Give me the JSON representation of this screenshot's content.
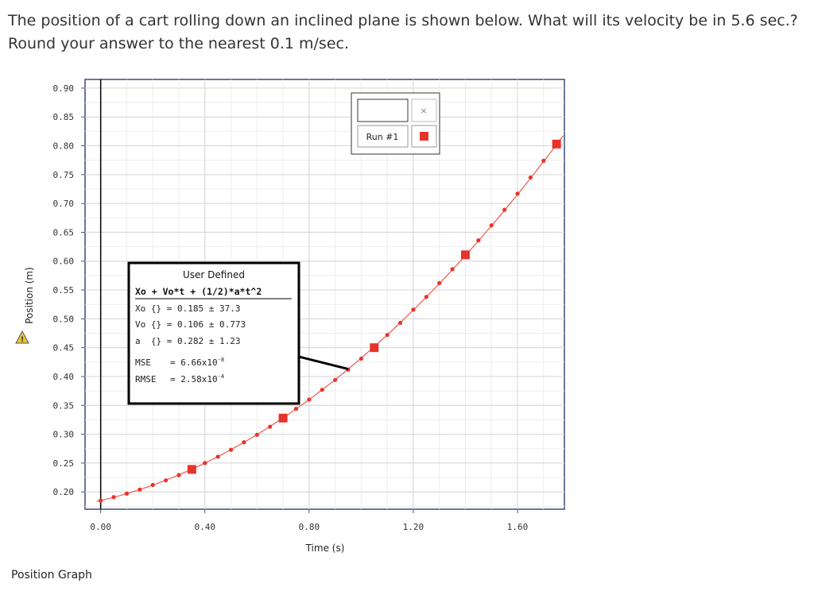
{
  "question": "The position of a cart rolling down an inclined plane is shown below. What will its velocity be in 5.6 sec.? Round your answer to the nearest 0.1 m/sec.",
  "caption": "Position Graph",
  "legend": {
    "run_label": "Run #1",
    "close": "×"
  },
  "fit_box": {
    "title": "User Defined",
    "equation": "Xo + Vo*t + (1/2)*a*t^2",
    "rows": [
      "Xo {} = 0.185 ± 37.3",
      "Vo {} = 0.106 ± 0.773",
      "a  {} = 0.282 ± 1.23"
    ],
    "mse_label": "MSE",
    "mse_value": "= 6.66x10",
    "mse_exp": "-8",
    "rmse_label": "RMSE",
    "rmse_value": "= 2.58x10",
    "rmse_exp": "-4"
  },
  "chart_data": {
    "type": "scatter",
    "xlabel": "Time (s)",
    "ylabel": "Position (m)",
    "xlim": [
      -0.06,
      1.78
    ],
    "ylim": [
      0.17,
      0.915
    ],
    "x_ticks": [
      "0.00",
      "0.40",
      "0.80",
      "1.20",
      "1.60"
    ],
    "x_tick_values": [
      0,
      0.4,
      0.8,
      1.2,
      1.6
    ],
    "y_ticks": [
      "0.20",
      "0.25",
      "0.30",
      "0.35",
      "0.40",
      "0.45",
      "0.50",
      "0.55",
      "0.60",
      "0.65",
      "0.70",
      "0.75",
      "0.80",
      "0.85",
      "0.90"
    ],
    "y_tick_values": [
      0.2,
      0.25,
      0.3,
      0.35,
      0.4,
      0.45,
      0.5,
      0.55,
      0.6,
      0.65,
      0.7,
      0.75,
      0.8,
      0.85,
      0.9
    ],
    "grid": true,
    "fit": {
      "Xo": 0.185,
      "Vo": 0.106,
      "a": 0.282
    },
    "series": [
      {
        "name": "Run #1",
        "color": "#e8332a",
        "x": [
          0.0,
          0.05,
          0.1,
          0.15,
          0.2,
          0.25,
          0.3,
          0.35,
          0.4,
          0.45,
          0.5,
          0.55,
          0.6,
          0.65,
          0.7,
          0.75,
          0.8,
          0.85,
          0.9,
          0.95,
          1.0,
          1.05,
          1.1,
          1.15,
          1.2,
          1.25,
          1.3,
          1.35,
          1.4,
          1.45,
          1.5,
          1.55,
          1.6,
          1.65,
          1.7,
          1.75
        ],
        "y": [
          0.185,
          0.191,
          0.197,
          0.204,
          0.212,
          0.22,
          0.229,
          0.239,
          0.25,
          0.261,
          0.273,
          0.286,
          0.299,
          0.313,
          0.328,
          0.344,
          0.36,
          0.377,
          0.394,
          0.412,
          0.431,
          0.45,
          0.472,
          0.493,
          0.516,
          0.538,
          0.562,
          0.586,
          0.611,
          0.636,
          0.662,
          0.689,
          0.717,
          0.745,
          0.774,
          0.803
        ],
        "highlighted_x": [
          0.35,
          0.7,
          1.05,
          1.4,
          1.75
        ]
      }
    ],
    "line_color": "#f05a4e",
    "cursor_x": 0.0
  }
}
